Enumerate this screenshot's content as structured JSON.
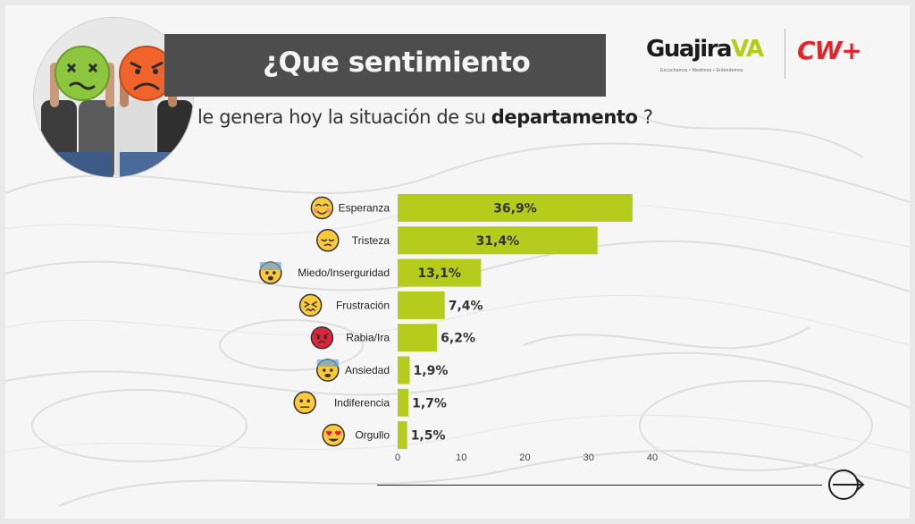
{
  "header": {
    "title": "¿Que sentimiento",
    "subtitle_pre": "le genera hoy la situación de su",
    "subtitle_bold": "departamento",
    "subtitle_post": " ?"
  },
  "brand": {
    "name_part1": "Guajira",
    "name_part2": "VA",
    "tagline": "Escuchamos • Medimos • Entendemos",
    "partner": "CW+",
    "accent_color": "#b5cc1c",
    "partner_color": "#e8232a"
  },
  "chart_data": {
    "type": "bar",
    "orientation": "horizontal",
    "categories": [
      "Esperanza",
      "Tristeza",
      "Miedo/Inserguridad",
      "Frustración",
      "Rabia/Ira",
      "Ansiedad",
      "Indiferencia",
      "Orgullo"
    ],
    "values": [
      36.9,
      31.4,
      13.1,
      7.4,
      6.2,
      1.9,
      1.7,
      1.5
    ],
    "value_labels": [
      "36,9%",
      "31,4%",
      "13,1%",
      "7,4%",
      "6,2%",
      "1,9%",
      "1,7%",
      "1,5%"
    ],
    "icons": [
      "smiling-blush-icon",
      "pensive-face-icon",
      "fearful-face-icon",
      "confounded-face-icon",
      "angry-face-icon",
      "anxious-sweat-icon",
      "neutral-face-icon",
      "heart-eyes-icon"
    ],
    "xlim": [
      0,
      40
    ],
    "xticks": [
      "0",
      "10",
      "20",
      "30",
      "40"
    ],
    "bar_color": "#b5cc1c",
    "grid": false,
    "legend": "none",
    "title": "",
    "xlabel": "",
    "ylabel": ""
  },
  "navigation": {
    "next_icon": "arrow-right-circle-icon"
  }
}
